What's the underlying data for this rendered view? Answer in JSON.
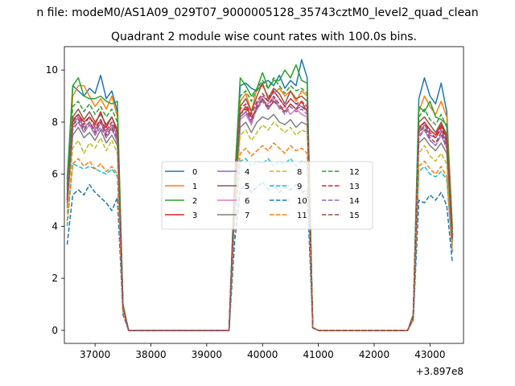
{
  "figure": {
    "suptitle": "n file: modeM0/AS1A09_029T07_9000005128_35743cztM0_level2_quad_clean"
  },
  "chart_data": {
    "type": "line",
    "title": "Quadrant 2 module wise count rates with 100.0s bins.",
    "xlabel": "",
    "ylabel": "",
    "x_offset_label": "+3.897e8",
    "xlim": [
      36450,
      43600
    ],
    "ylim": [
      -0.5,
      10.9
    ],
    "xticks": [
      37000,
      38000,
      39000,
      40000,
      41000,
      42000,
      43000
    ],
    "xtick_labels": [
      "37000",
      "38000",
      "39000",
      "40000",
      "41000",
      "42000",
      "43000"
    ],
    "yticks": [
      0,
      2,
      4,
      6,
      8,
      10
    ],
    "ytick_labels": [
      "0",
      "2",
      "4",
      "6",
      "8",
      "10"
    ],
    "grid": false,
    "legend": {
      "placement": "center",
      "columns": 4
    },
    "x": [
      36500,
      36600,
      36700,
      36800,
      36900,
      37000,
      37100,
      37200,
      37300,
      37400,
      37500,
      37600,
      37700,
      37800,
      37900,
      38000,
      38100,
      38200,
      38300,
      38400,
      38500,
      38600,
      38700,
      38800,
      38900,
      39000,
      39100,
      39200,
      39300,
      39400,
      39500,
      39600,
      39700,
      39800,
      39900,
      40000,
      40100,
      40200,
      40300,
      40400,
      40500,
      40600,
      40700,
      40800,
      40900,
      41000,
      41100,
      41200,
      41300,
      41400,
      41500,
      41600,
      41700,
      41800,
      41900,
      42000,
      42100,
      42200,
      42300,
      42400,
      42500,
      42600,
      42700,
      42800,
      42900,
      43000,
      43100,
      43200,
      43300,
      43400
    ],
    "series": [
      {
        "name": "0",
        "color": "#1f77b4",
        "dash": "solid",
        "values": [
          5.8,
          9.4,
          9.2,
          9.0,
          9.3,
          9.1,
          9.8,
          8.9,
          9.2,
          8.4,
          1.0,
          0,
          0,
          0,
          0,
          0,
          0,
          0,
          0,
          0,
          0,
          0,
          0,
          0,
          0,
          0,
          0,
          0,
          0,
          0,
          5.8,
          9.4,
          9.5,
          9.3,
          9.2,
          9.5,
          9.6,
          9.4,
          9.8,
          9.3,
          9.6,
          9.4,
          10.4,
          9.7,
          0.1,
          0,
          0,
          0,
          0,
          0,
          0,
          0,
          0,
          0,
          0,
          0,
          0,
          0,
          0,
          0,
          0,
          0,
          0.6,
          8.9,
          9.7,
          9.0,
          8.7,
          9.5,
          8.4,
          4.0
        ]
      },
      {
        "name": "1",
        "color": "#ff7f0e",
        "dash": "solid",
        "values": [
          5.5,
          9.0,
          9.4,
          9.4,
          9.0,
          8.6,
          8.9,
          8.5,
          9.0,
          8.2,
          0.9,
          0,
          0,
          0,
          0,
          0,
          0,
          0,
          0,
          0,
          0,
          0,
          0,
          0,
          0,
          0,
          0,
          0,
          0,
          0,
          5.5,
          8.8,
          9.1,
          8.4,
          9.3,
          9.4,
          9.0,
          9.1,
          9.3,
          9.0,
          9.2,
          8.8,
          9.2,
          9.0,
          0.1,
          0,
          0,
          0,
          0,
          0,
          0,
          0,
          0,
          0,
          0,
          0,
          0,
          0,
          0,
          0,
          0,
          0,
          0.6,
          8.4,
          9.0,
          8.6,
          8.3,
          8.8,
          8.2,
          3.9
        ]
      },
      {
        "name": "2",
        "color": "#2ca02c",
        "dash": "solid",
        "values": [
          5.6,
          9.4,
          9.7,
          9.0,
          8.9,
          8.9,
          9.0,
          8.8,
          8.7,
          8.8,
          1.0,
          0,
          0,
          0,
          0,
          0,
          0,
          0,
          0,
          0,
          0,
          0,
          0,
          0,
          0,
          0,
          0,
          0,
          0,
          0,
          5.7,
          9.7,
          9.4,
          9.0,
          9.3,
          9.9,
          9.3,
          9.6,
          9.6,
          10.0,
          9.7,
          10.2,
          9.6,
          9.5,
          0.1,
          0,
          0,
          0,
          0,
          0,
          0,
          0,
          0,
          0,
          0,
          0,
          0,
          0,
          0,
          0,
          0,
          0,
          0.6,
          8.6,
          8.4,
          8.8,
          8.2,
          8.1,
          7.9,
          3.8
        ]
      },
      {
        "name": "3",
        "color": "#d62728",
        "dash": "solid",
        "values": [
          5.0,
          8.1,
          8.3,
          8.0,
          8.2,
          7.9,
          8.4,
          7.8,
          8.2,
          7.6,
          0.9,
          0,
          0,
          0,
          0,
          0,
          0,
          0,
          0,
          0,
          0,
          0,
          0,
          0,
          0,
          0,
          0,
          0,
          0,
          0,
          5.1,
          8.3,
          8.6,
          8.2,
          8.5,
          8.9,
          8.5,
          8.8,
          8.6,
          8.4,
          8.7,
          8.5,
          8.8,
          8.4,
          0.1,
          0,
          0,
          0,
          0,
          0,
          0,
          0,
          0,
          0,
          0,
          0,
          0,
          0,
          0,
          0,
          0,
          0,
          0.6,
          7.8,
          8.0,
          7.7,
          7.5,
          7.9,
          7.4,
          3.6
        ]
      },
      {
        "name": "4",
        "color": "#9467bd",
        "dash": "solid",
        "values": [
          4.9,
          7.9,
          8.2,
          7.8,
          8.0,
          7.7,
          8.1,
          7.6,
          7.9,
          7.5,
          0.9,
          0,
          0,
          0,
          0,
          0,
          0,
          0,
          0,
          0,
          0,
          0,
          0,
          0,
          0,
          0,
          0,
          0,
          0,
          0,
          5.0,
          8.2,
          8.4,
          8.0,
          8.7,
          9.0,
          8.8,
          9.2,
          8.9,
          8.6,
          8.9,
          8.7,
          8.6,
          8.5,
          0.1,
          0,
          0,
          0,
          0,
          0,
          0,
          0,
          0,
          0,
          0,
          0,
          0,
          0,
          0,
          0,
          0,
          0,
          0.5,
          7.6,
          7.9,
          7.5,
          7.4,
          7.7,
          7.2,
          3.5
        ]
      },
      {
        "name": "5",
        "color": "#8c564b",
        "dash": "solid",
        "values": [
          5.2,
          8.2,
          8.5,
          8.1,
          8.4,
          8.0,
          8.3,
          7.9,
          8.2,
          7.7,
          0.9,
          0,
          0,
          0,
          0,
          0,
          0,
          0,
          0,
          0,
          0,
          0,
          0,
          0,
          0,
          0,
          0,
          0,
          0,
          0,
          5.3,
          8.6,
          8.9,
          8.4,
          9.0,
          9.5,
          8.9,
          9.3,
          9.1,
          8.7,
          9.2,
          8.9,
          9.0,
          8.8,
          0.1,
          0,
          0,
          0,
          0,
          0,
          0,
          0,
          0,
          0,
          0,
          0,
          0,
          0,
          0,
          0,
          0,
          0,
          0.5,
          8.0,
          8.2,
          7.9,
          7.6,
          8.0,
          7.5,
          3.7
        ]
      },
      {
        "name": "6",
        "color": "#e377c2",
        "dash": "solid",
        "values": [
          4.8,
          7.8,
          8.0,
          7.6,
          7.9,
          7.5,
          8.0,
          7.4,
          7.8,
          7.2,
          0.8,
          0,
          0,
          0,
          0,
          0,
          0,
          0,
          0,
          0,
          0,
          0,
          0,
          0,
          0,
          0,
          0,
          0,
          0,
          0,
          4.9,
          8.1,
          8.3,
          7.9,
          8.6,
          8.8,
          8.7,
          9.0,
          8.5,
          8.6,
          8.3,
          8.5,
          8.3,
          8.2,
          0.1,
          0,
          0,
          0,
          0,
          0,
          0,
          0,
          0,
          0,
          0,
          0,
          0,
          0,
          0,
          0,
          0,
          0,
          0.5,
          7.5,
          7.7,
          7.3,
          7.1,
          7.5,
          7.0,
          3.4
        ]
      },
      {
        "name": "7",
        "color": "#7f7f7f",
        "dash": "solid",
        "values": [
          4.7,
          7.5,
          7.8,
          7.4,
          7.6,
          7.3,
          7.7,
          7.2,
          7.5,
          7.1,
          0.8,
          0,
          0,
          0,
          0,
          0,
          0,
          0,
          0,
          0,
          0,
          0,
          0,
          0,
          0,
          0,
          0,
          0,
          0,
          0,
          4.8,
          7.8,
          8.0,
          7.6,
          8.0,
          8.2,
          8.1,
          8.3,
          8.0,
          7.9,
          8.1,
          7.8,
          8.0,
          7.9,
          0.1,
          0,
          0,
          0,
          0,
          0,
          0,
          0,
          0,
          0,
          0,
          0,
          0,
          0,
          0,
          0,
          0,
          0,
          0.5,
          7.2,
          7.4,
          7.1,
          6.9,
          7.2,
          6.8,
          3.3
        ]
      },
      {
        "name": "8",
        "color": "#bcbd22",
        "dash": "dashed",
        "values": [
          4.5,
          7.0,
          7.3,
          6.8,
          7.2,
          7.0,
          7.4,
          6.9,
          7.3,
          6.8,
          0.8,
          0,
          0,
          0,
          0,
          0,
          0,
          0,
          0,
          0,
          0,
          0,
          0,
          0,
          0,
          0,
          0,
          0,
          0,
          0,
          4.6,
          7.5,
          7.7,
          7.3,
          7.6,
          7.9,
          7.7,
          8.0,
          7.8,
          7.6,
          7.8,
          7.5,
          7.7,
          7.6,
          0.1,
          0,
          0,
          0,
          0,
          0,
          0,
          0,
          0,
          0,
          0,
          0,
          0,
          0,
          0,
          0,
          0,
          0,
          0.5,
          6.8,
          7.1,
          6.7,
          6.5,
          6.8,
          6.4,
          3.2
        ]
      },
      {
        "name": "9",
        "color": "#17becf",
        "dash": "dashed",
        "values": [
          4.0,
          6.4,
          6.3,
          6.2,
          6.3,
          6.2,
          6.1,
          6.0,
          6.2,
          5.9,
          0.7,
          0,
          0,
          0,
          0,
          0,
          0,
          0,
          0,
          0,
          0,
          0,
          0,
          0,
          0,
          0,
          0,
          0,
          0,
          0,
          4.1,
          6.5,
          6.6,
          6.3,
          6.5,
          6.4,
          6.6,
          6.3,
          6.5,
          6.4,
          6.6,
          6.3,
          6.5,
          6.4,
          0.1,
          0,
          0,
          0,
          0,
          0,
          0,
          0,
          0,
          0,
          0,
          0,
          0,
          0,
          0,
          0,
          0,
          0,
          0.4,
          6.1,
          6.3,
          6.0,
          5.9,
          6.1,
          5.8,
          3.0
        ]
      },
      {
        "name": "10",
        "color": "#1f77b4",
        "dash": "dashed",
        "values": [
          3.3,
          5.2,
          5.4,
          5.2,
          5.6,
          5.3,
          5.1,
          4.9,
          4.6,
          5.1,
          0.6,
          0,
          0,
          0,
          0,
          0,
          0,
          0,
          0,
          0,
          0,
          0,
          0,
          0,
          0,
          0,
          0,
          0,
          0,
          0,
          3.4,
          5.4,
          5.6,
          5.3,
          5.5,
          5.7,
          5.4,
          5.6,
          5.3,
          5.5,
          5.4,
          5.6,
          5.3,
          5.4,
          0.1,
          0,
          0,
          0,
          0,
          0,
          0,
          0,
          0,
          0,
          0,
          0,
          0,
          0,
          0,
          0,
          0,
          0,
          0.4,
          5.0,
          4.9,
          5.2,
          5.0,
          5.3,
          4.8,
          2.6
        ]
      },
      {
        "name": "11",
        "color": "#ff7f0e",
        "dash": "dashed",
        "values": [
          4.2,
          6.4,
          6.6,
          6.3,
          6.5,
          6.2,
          6.4,
          6.1,
          6.3,
          6.0,
          0.7,
          0,
          0,
          0,
          0,
          0,
          0,
          0,
          0,
          0,
          0,
          0,
          0,
          0,
          0,
          0,
          0,
          0,
          0,
          0,
          4.3,
          6.8,
          7.0,
          6.7,
          6.9,
          7.1,
          6.9,
          7.2,
          7.0,
          6.8,
          7.1,
          6.9,
          7.0,
          6.8,
          0.1,
          0,
          0,
          0,
          0,
          0,
          0,
          0,
          0,
          0,
          0,
          0,
          0,
          0,
          0,
          0,
          0,
          0,
          0.4,
          6.3,
          6.5,
          6.2,
          6.0,
          6.3,
          5.9,
          3.0
        ]
      },
      {
        "name": "12",
        "color": "#2ca02c",
        "dash": "dashed",
        "values": [
          5.4,
          8.6,
          8.8,
          8.4,
          8.7,
          8.3,
          8.6,
          8.2,
          8.5,
          8.0,
          1.0,
          0,
          0,
          0,
          0,
          0,
          0,
          0,
          0,
          0,
          0,
          0,
          0,
          0,
          0,
          0,
          0,
          0,
          0,
          0,
          5.5,
          9.0,
          9.2,
          8.8,
          9.3,
          9.6,
          9.3,
          9.7,
          9.4,
          9.1,
          9.4,
          9.2,
          9.3,
          9.1,
          0.1,
          0,
          0,
          0,
          0,
          0,
          0,
          0,
          0,
          0,
          0,
          0,
          0,
          0,
          0,
          0,
          0,
          0,
          0.6,
          8.2,
          8.5,
          8.1,
          7.9,
          8.3,
          7.8,
          3.8
        ]
      },
      {
        "name": "13",
        "color": "#d62728",
        "dash": "dashed",
        "values": [
          5.1,
          8.0,
          8.3,
          7.9,
          8.2,
          7.8,
          8.1,
          7.7,
          8.0,
          7.6,
          0.9,
          0,
          0,
          0,
          0,
          0,
          0,
          0,
          0,
          0,
          0,
          0,
          0,
          0,
          0,
          0,
          0,
          0,
          0,
          0,
          5.2,
          8.5,
          8.7,
          8.3,
          8.8,
          9.1,
          8.8,
          9.2,
          8.9,
          8.6,
          8.9,
          8.7,
          8.8,
          8.6,
          0.1,
          0,
          0,
          0,
          0,
          0,
          0,
          0,
          0,
          0,
          0,
          0,
          0,
          0,
          0,
          0,
          0,
          0,
          0.5,
          7.7,
          8.0,
          7.6,
          7.4,
          7.8,
          7.3,
          3.6
        ]
      },
      {
        "name": "14",
        "color": "#9467bd",
        "dash": "dashed",
        "values": [
          4.9,
          7.7,
          8.0,
          7.6,
          7.9,
          7.5,
          7.8,
          7.4,
          7.7,
          7.3,
          0.9,
          0,
          0,
          0,
          0,
          0,
          0,
          0,
          0,
          0,
          0,
          0,
          0,
          0,
          0,
          0,
          0,
          0,
          0,
          0,
          5.0,
          8.2,
          8.4,
          8.0,
          8.5,
          8.8,
          8.5,
          8.9,
          8.6,
          8.3,
          8.6,
          8.4,
          8.5,
          8.3,
          0.1,
          0,
          0,
          0,
          0,
          0,
          0,
          0,
          0,
          0,
          0,
          0,
          0,
          0,
          0,
          0,
          0,
          0,
          0.5,
          7.4,
          7.7,
          7.3,
          7.1,
          7.5,
          7.0,
          3.5
        ]
      },
      {
        "name": "15",
        "color": "#8c564b",
        "dash": "dashed",
        "values": [
          5.0,
          7.9,
          8.1,
          7.7,
          8.0,
          7.6,
          8.0,
          7.5,
          7.8,
          7.4,
          0.9,
          0,
          0,
          0,
          0,
          0,
          0,
          0,
          0,
          0,
          0,
          0,
          0,
          0,
          0,
          0,
          0,
          0,
          0,
          0,
          5.1,
          8.3,
          8.5,
          8.1,
          8.6,
          8.9,
          8.6,
          9.0,
          8.7,
          8.4,
          8.7,
          8.5,
          8.6,
          8.4,
          0.1,
          0,
          0,
          0,
          0,
          0,
          0,
          0,
          0,
          0,
          0,
          0,
          0,
          0,
          0,
          0,
          0,
          0,
          0.5,
          7.6,
          7.8,
          7.4,
          7.2,
          7.6,
          7.1,
          3.5
        ]
      }
    ]
  }
}
